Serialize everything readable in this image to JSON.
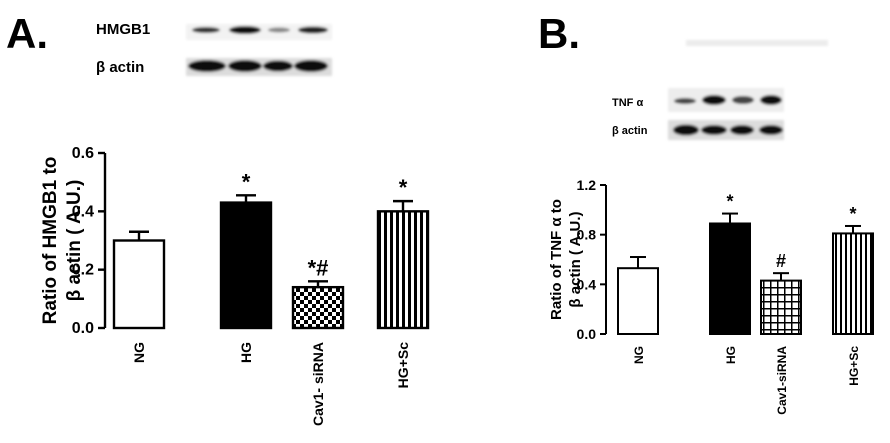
{
  "panels": {
    "a": {
      "letter": "A.",
      "blot": {
        "labels": [
          "HMGB1",
          "β actin"
        ]
      }
    },
    "b": {
      "letter": "B.",
      "blot": {
        "labels": [
          "TNF α",
          "β actin"
        ]
      }
    }
  },
  "chart_data": [
    {
      "type": "bar",
      "panel": "A.",
      "categories": [
        "NG",
        "HG",
        "Cav1- siRNA",
        "HG+Sc"
      ],
      "values": [
        0.3,
        0.43,
        0.14,
        0.4
      ],
      "errors": [
        0.03,
        0.025,
        0.02,
        0.035
      ],
      "significance": [
        "",
        "*",
        "*#",
        "*"
      ],
      "fill_patterns": [
        "white",
        "black",
        "checkerboard",
        "vertical-stripes"
      ],
      "ylabel_lines": [
        "Ratio of HMGB1 to",
        "β actin ( A.U.)"
      ],
      "yticks": [
        "0.0",
        "0.2",
        "0.4",
        "0.6"
      ],
      "ylim": [
        0,
        0.6
      ],
      "grid": false
    },
    {
      "type": "bar",
      "panel": "B.",
      "categories": [
        "NG",
        "HG",
        "Cav1-siRNA",
        "HG+Sc"
      ],
      "values": [
        0.53,
        0.89,
        0.43,
        0.81
      ],
      "errors": [
        0.09,
        0.08,
        0.06,
        0.06
      ],
      "significance": [
        "",
        "*",
        "#",
        "*"
      ],
      "fill_patterns": [
        "white",
        "black",
        "grid",
        "vertical-stripes"
      ],
      "ylabel_lines": [
        "Ratio of TNF α to",
        "β actin ( A.U.)"
      ],
      "yticks": [
        "0.0",
        "0.4",
        "0.8",
        "1.2"
      ],
      "ylim": [
        0,
        1.2
      ],
      "grid": false
    }
  ]
}
